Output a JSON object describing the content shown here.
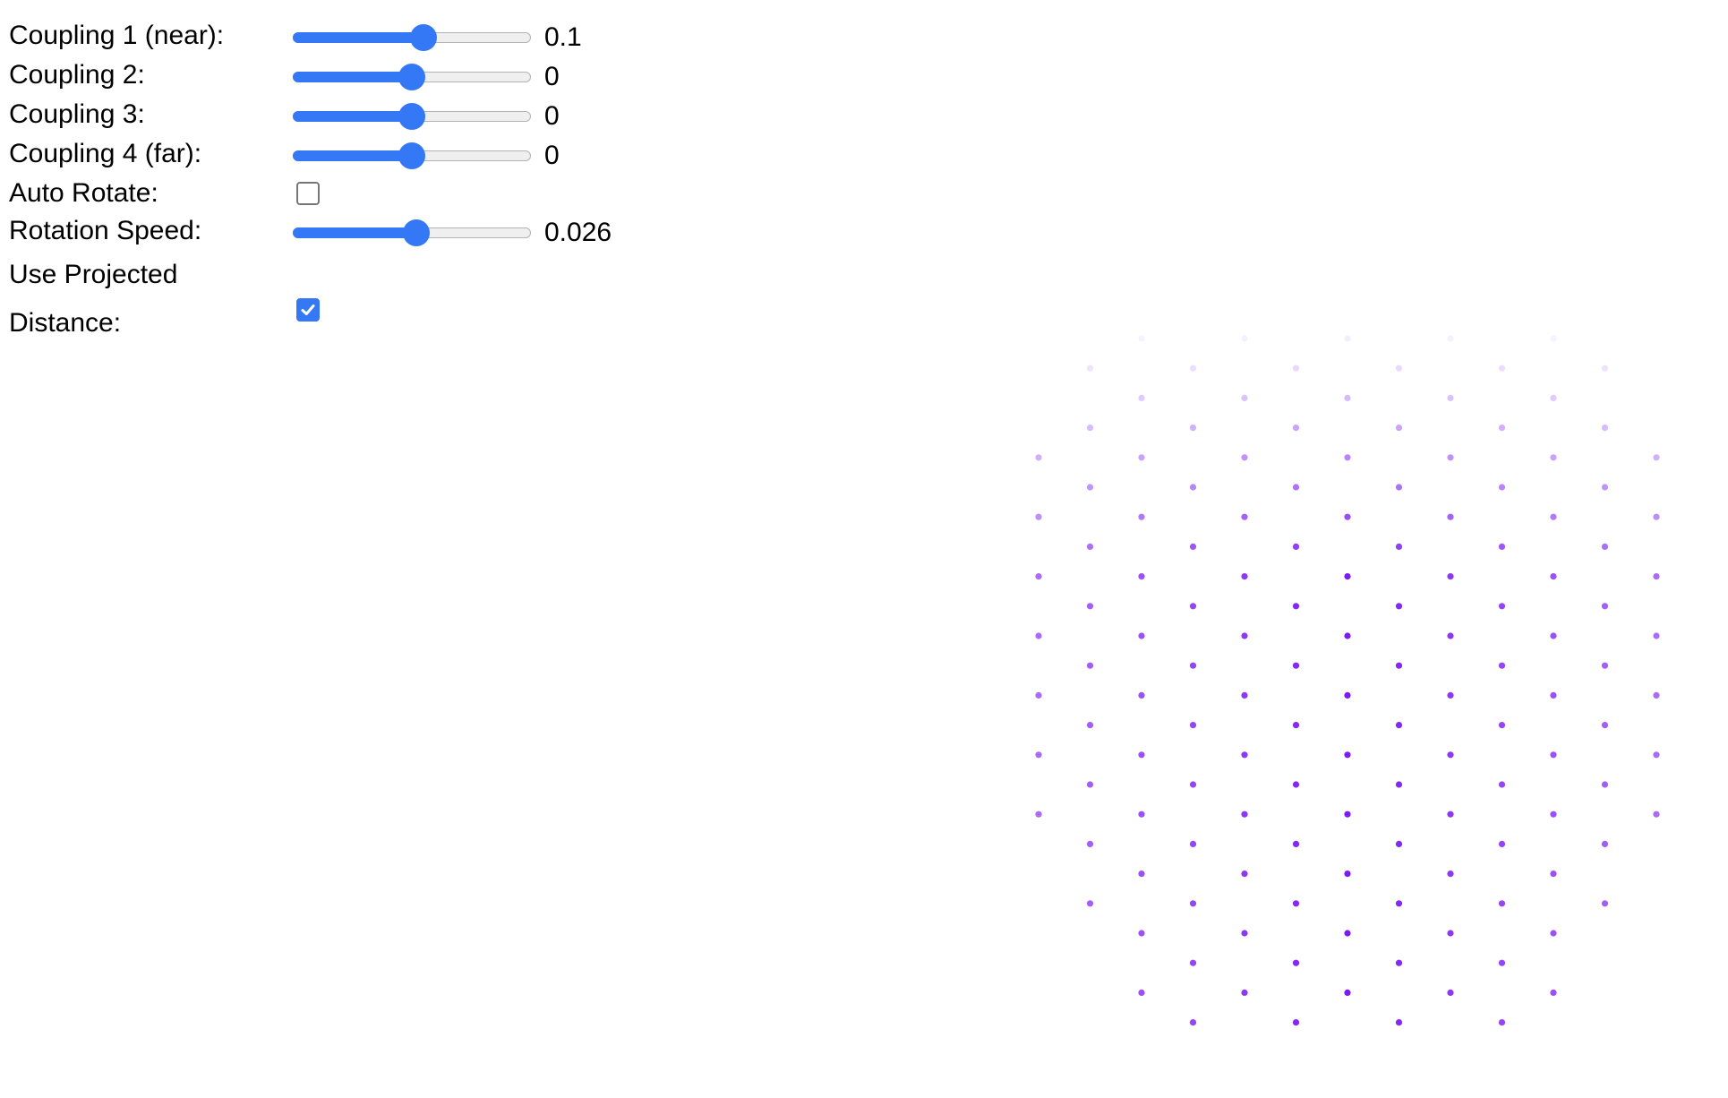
{
  "controls": {
    "coupling1": {
      "label": "Coupling 1 (near):",
      "value": "0.1",
      "position": 0.55
    },
    "coupling2": {
      "label": "Coupling 2:",
      "value": "0",
      "position": 0.5
    },
    "coupling3": {
      "label": "Coupling 3:",
      "value": "0",
      "position": 0.5
    },
    "coupling4": {
      "label": "Coupling 4 (far):",
      "value": "0",
      "position": 0.5
    },
    "auto_rotate": {
      "label": "Auto Rotate:",
      "checked": false
    },
    "rotation_speed": {
      "label": "Rotation Speed:",
      "value": "0.026",
      "position": 0.52
    },
    "use_projected_distance": {
      "label": "Use Projected Distance:",
      "checked": true
    }
  },
  "colors": {
    "accent": "#3478f6",
    "dot": "#7c1cf2"
  }
}
